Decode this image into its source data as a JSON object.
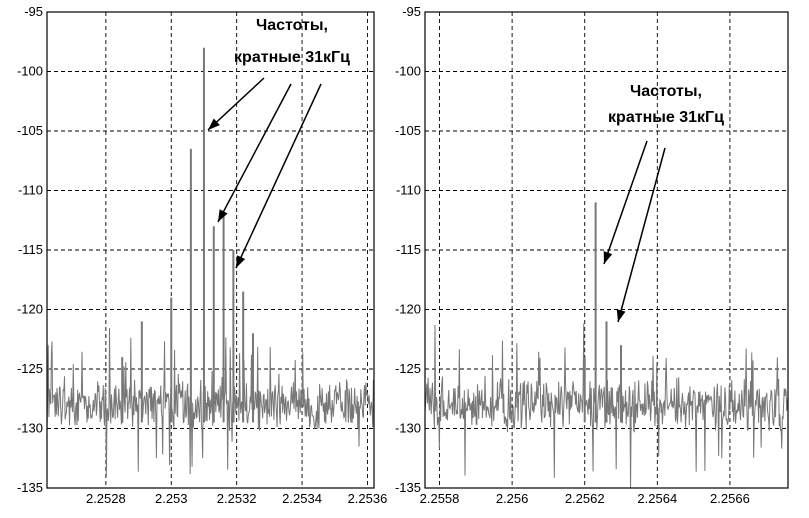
{
  "chart_data": [
    {
      "type": "line",
      "title": "",
      "xlabel": "",
      "ylabel": "",
      "xlim": [
        2.25262,
        2.25362
      ],
      "ylim": [
        -135,
        -95
      ],
      "y_ticks": [
        -95,
        -100,
        -105,
        -110,
        -115,
        -120,
        -125,
        -130,
        -135
      ],
      "y_tick_labels": [
        "-95",
        "-100",
        "-105",
        "-110",
        "-115",
        "-120",
        "-125",
        "-130",
        "-135"
      ],
      "x_ticks": [
        2.2528,
        2.253,
        2.2532,
        2.2534,
        2.2536
      ],
      "x_tick_labels": [
        "2.2528",
        "2.253",
        "2.2532",
        "2.2534",
        "2.2536"
      ],
      "grid": true,
      "noise_floor": -128,
      "spikes": [
        {
          "x": 2.25306,
          "y": -106.5
        },
        {
          "x": 2.2531,
          "y": -98
        },
        {
          "x": 2.25313,
          "y": -113
        },
        {
          "x": 2.25316,
          "y": -112
        },
        {
          "x": 2.25319,
          "y": -115
        },
        {
          "x": 2.25291,
          "y": -121
        },
        {
          "x": 2.253,
          "y": -119
        },
        {
          "x": 2.25322,
          "y": -118.5
        },
        {
          "x": 2.25325,
          "y": -122
        },
        {
          "x": 2.25285,
          "y": -124
        }
      ],
      "annotation": {
        "line1": "Частоты,",
        "line2": "кратные 31кГц"
      }
    },
    {
      "type": "line",
      "title": "",
      "xlabel": "",
      "ylabel": "",
      "xlim": [
        2.25576,
        2.25676
      ],
      "ylim": [
        -135,
        -95
      ],
      "y_ticks": [
        -95,
        -100,
        -105,
        -110,
        -115,
        -120,
        -125,
        -130,
        -135
      ],
      "y_tick_labels": [
        "-95",
        "-100",
        "-105",
        "-110",
        "-115",
        "-120",
        "-125",
        "-130",
        "-135"
      ],
      "x_ticks": [
        2.2558,
        2.256,
        2.2562,
        2.2564,
        2.2566
      ],
      "x_tick_labels": [
        "2.2558",
        "2.256",
        "2.2562",
        "2.2564",
        "2.2566"
      ],
      "grid": true,
      "noise_floor": -128,
      "spikes": [
        {
          "x": 2.25623,
          "y": -111
        },
        {
          "x": 2.25626,
          "y": -121
        },
        {
          "x": 2.2562,
          "y": -124
        },
        {
          "x": 2.2563,
          "y": -123
        }
      ],
      "annotation": {
        "line1": "Частоты,",
        "line2": "кратные 31кГц"
      }
    }
  ]
}
